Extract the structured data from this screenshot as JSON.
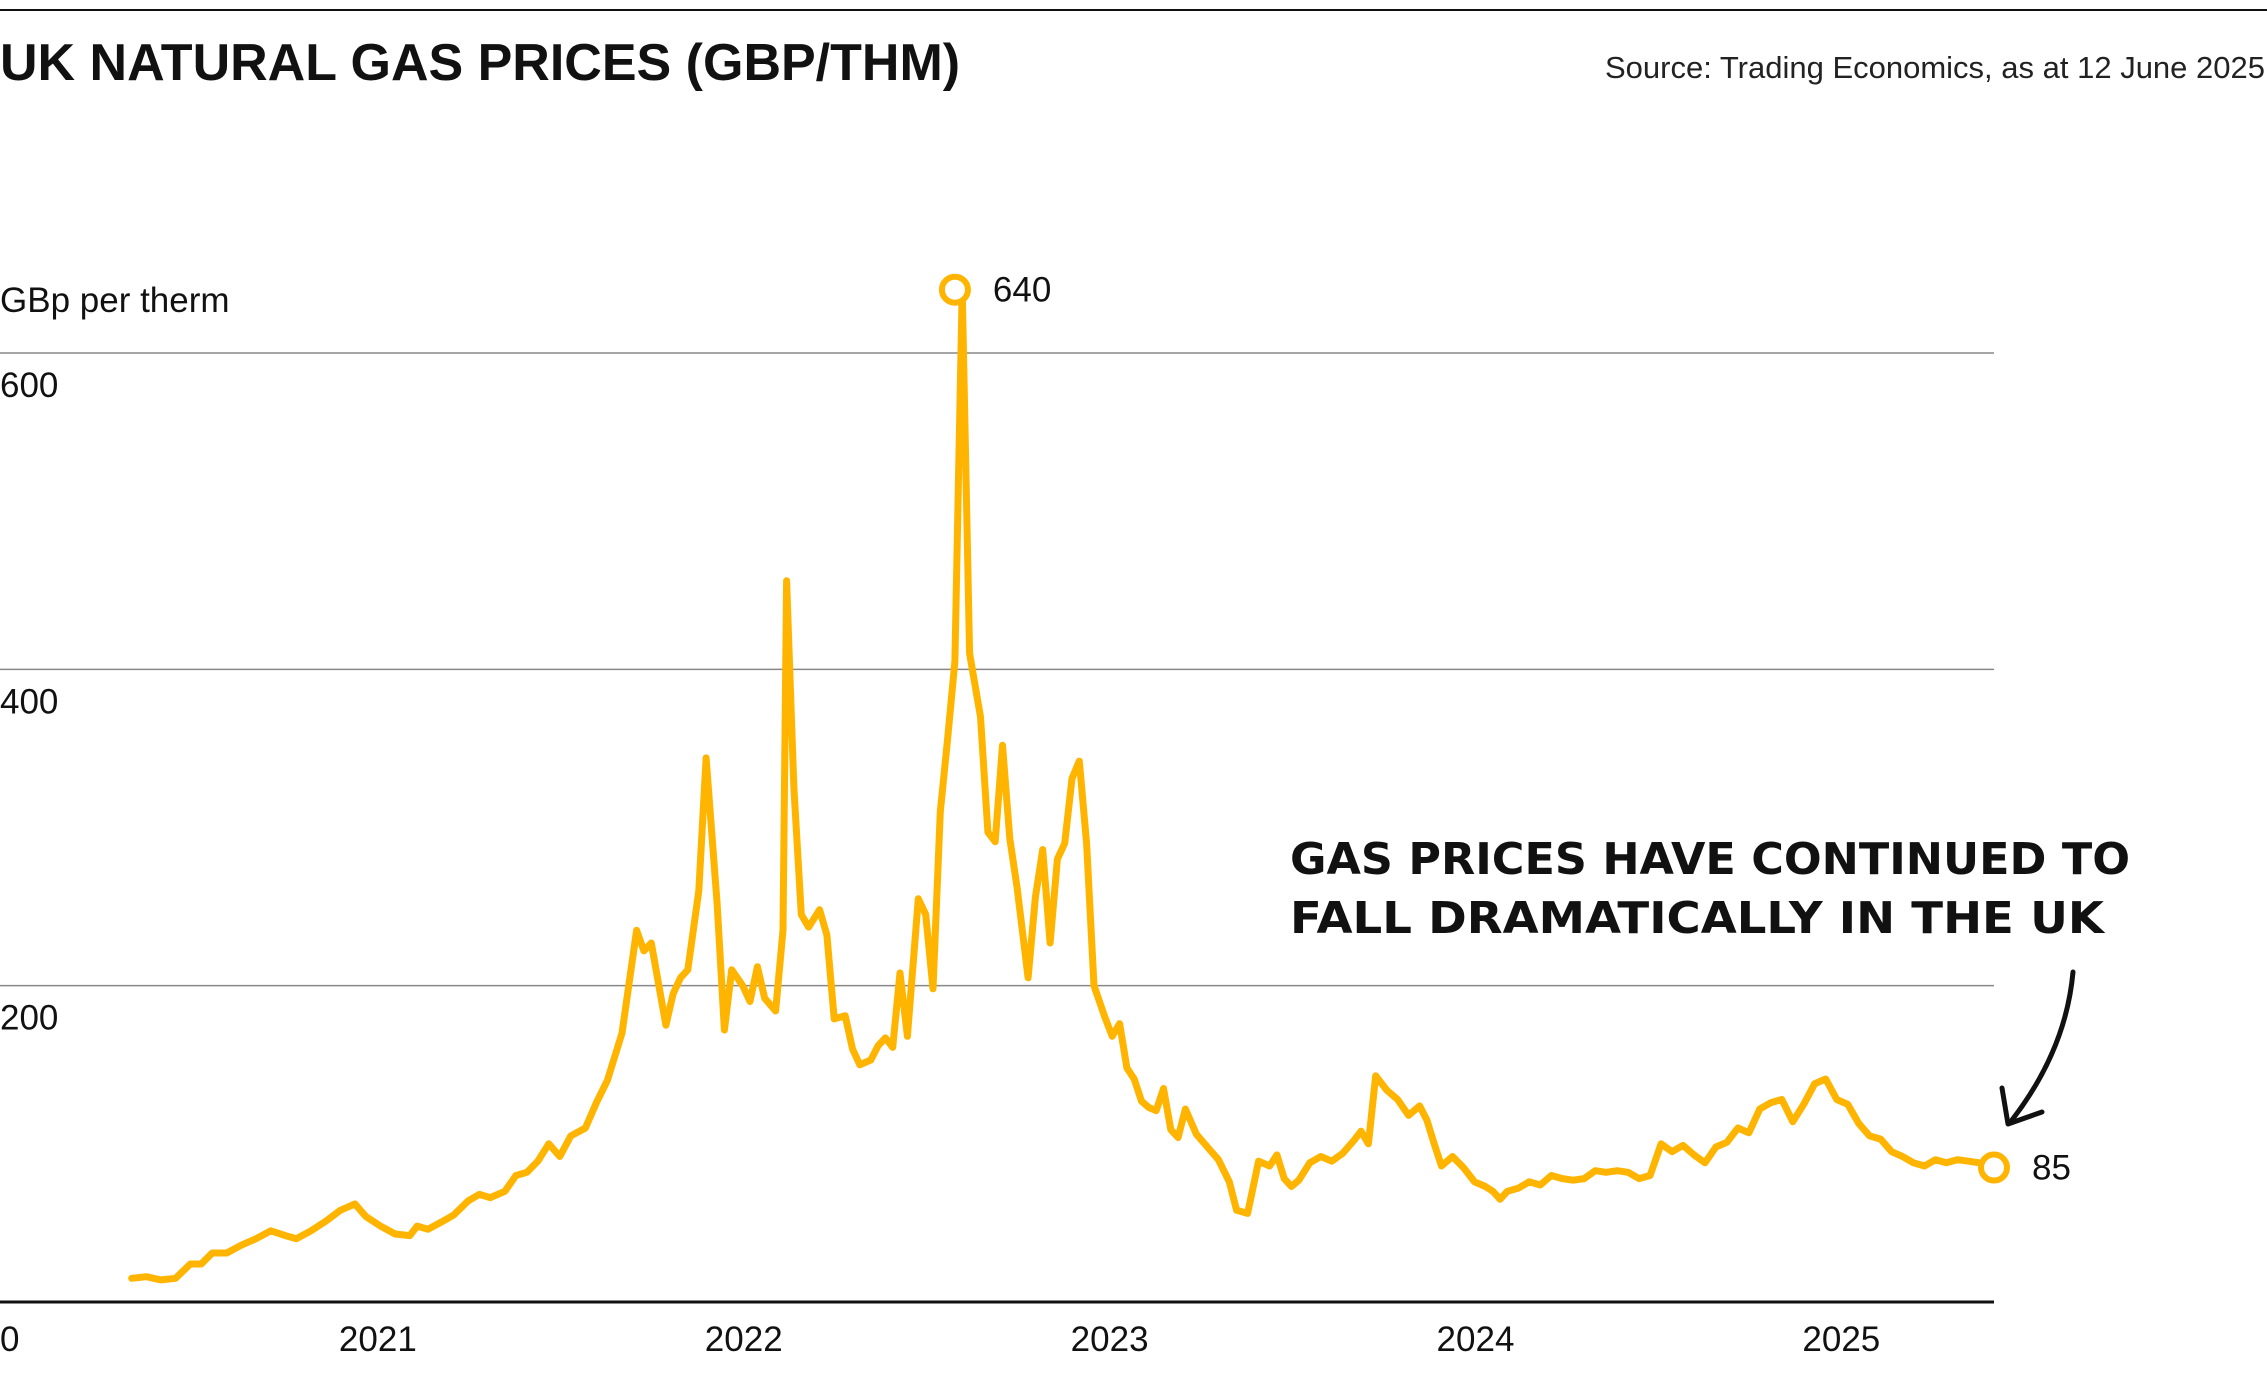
{
  "header": {
    "title": "UK NATURAL GAS PRICES (GBP/THM)",
    "source": "Source: Trading Economics, as at 12 June 2025"
  },
  "annotation": {
    "line1": "GAS PRICES HAVE CONTINUED TO",
    "line2": "FALL DRAMATICALLY IN THE UK"
  },
  "colors": {
    "line": "#FFB400",
    "text": "#111111",
    "grid": "#888888",
    "axis": "#111111"
  },
  "chart_data": {
    "type": "line",
    "title": "UK NATURAL GAS PRICES (GBP/THM)",
    "ylabel": "GBp per therm",
    "xlabel": "",
    "ylim": [
      0,
      660
    ],
    "yticks": [
      0,
      200,
      400,
      600
    ],
    "xticks": [
      "2021",
      "2022",
      "2023",
      "2024",
      "2025"
    ],
    "grid": true,
    "callouts": [
      {
        "label": "640",
        "x": 2022.61,
        "y": 640
      },
      {
        "label": "85",
        "x": 2025.45,
        "y": 85
      }
    ],
    "series": [
      {
        "values": [
          [
            2020.36,
            15
          ],
          [
            2020.4,
            16
          ],
          [
            2020.44,
            14
          ],
          [
            2020.48,
            15
          ],
          [
            2020.52,
            24
          ],
          [
            2020.55,
            24
          ],
          [
            2020.58,
            31
          ],
          [
            2020.62,
            31
          ],
          [
            2020.66,
            36
          ],
          [
            2020.7,
            40
          ],
          [
            2020.74,
            45
          ],
          [
            2020.78,
            42
          ],
          [
            2020.81,
            40
          ],
          [
            2020.85,
            45
          ],
          [
            2020.89,
            51
          ],
          [
            2020.93,
            58
          ],
          [
            2020.97,
            62
          ],
          [
            2021.0,
            54
          ],
          [
            2021.04,
            48
          ],
          [
            2021.08,
            43
          ],
          [
            2021.12,
            42
          ],
          [
            2021.14,
            48
          ],
          [
            2021.17,
            46
          ],
          [
            2021.21,
            51
          ],
          [
            2021.24,
            55
          ],
          [
            2021.28,
            64
          ],
          [
            2021.31,
            68
          ],
          [
            2021.34,
            66
          ],
          [
            2021.38,
            70
          ],
          [
            2021.41,
            80
          ],
          [
            2021.44,
            82
          ],
          [
            2021.47,
            89
          ],
          [
            2021.5,
            100
          ],
          [
            2021.53,
            92
          ],
          [
            2021.56,
            105
          ],
          [
            2021.6,
            110
          ],
          [
            2021.63,
            126
          ],
          [
            2021.66,
            140
          ],
          [
            2021.7,
            170
          ],
          [
            2021.74,
            235
          ],
          [
            2021.76,
            222
          ],
          [
            2021.78,
            227
          ],
          [
            2021.8,
            201
          ],
          [
            2021.82,
            175
          ],
          [
            2021.84,
            195
          ],
          [
            2021.86,
            205
          ],
          [
            2021.88,
            210
          ],
          [
            2021.91,
            260
          ],
          [
            2021.93,
            344
          ],
          [
            2021.96,
            252
          ],
          [
            2021.98,
            172
          ],
          [
            2022.0,
            210
          ],
          [
            2022.03,
            200
          ],
          [
            2022.05,
            190
          ],
          [
            2022.07,
            212
          ],
          [
            2022.09,
            192
          ],
          [
            2022.12,
            184
          ],
          [
            2022.14,
            235
          ],
          [
            2022.15,
            456
          ],
          [
            2022.17,
            325
          ],
          [
            2022.19,
            245
          ],
          [
            2022.21,
            237
          ],
          [
            2022.24,
            248
          ],
          [
            2022.26,
            232
          ],
          [
            2022.28,
            179
          ],
          [
            2022.31,
            181
          ],
          [
            2022.33,
            160
          ],
          [
            2022.35,
            150
          ],
          [
            2022.38,
            153
          ],
          [
            2022.4,
            162
          ],
          [
            2022.42,
            167
          ],
          [
            2022.44,
            161
          ],
          [
            2022.46,
            208
          ],
          [
            2022.48,
            168
          ],
          [
            2022.51,
            255
          ],
          [
            2022.53,
            245
          ],
          [
            2022.55,
            198
          ],
          [
            2022.57,
            310
          ],
          [
            2022.59,
            356
          ],
          [
            2022.61,
            405
          ],
          [
            2022.63,
            640
          ],
          [
            2022.65,
            410
          ],
          [
            2022.68,
            370
          ],
          [
            2022.7,
            297
          ],
          [
            2022.72,
            291
          ],
          [
            2022.74,
            352
          ],
          [
            2022.76,
            293
          ],
          [
            2022.78,
            262
          ],
          [
            2022.81,
            205
          ],
          [
            2022.83,
            256
          ],
          [
            2022.85,
            286
          ],
          [
            2022.87,
            227
          ],
          [
            2022.89,
            280
          ],
          [
            2022.91,
            290
          ],
          [
            2022.93,
            331
          ],
          [
            2022.95,
            342
          ],
          [
            2022.97,
            290
          ],
          [
            2022.99,
            200
          ],
          [
            2023.02,
            180
          ],
          [
            2023.04,
            168
          ],
          [
            2023.06,
            176
          ],
          [
            2023.08,
            148
          ],
          [
            2023.1,
            141
          ],
          [
            2023.12,
            127
          ],
          [
            2023.14,
            123
          ],
          [
            2023.16,
            121
          ],
          [
            2023.18,
            135
          ],
          [
            2023.2,
            109
          ],
          [
            2023.22,
            104
          ],
          [
            2023.24,
            122
          ],
          [
            2023.27,
            106
          ],
          [
            2023.3,
            98
          ],
          [
            2023.33,
            90
          ],
          [
            2023.36,
            76
          ],
          [
            2023.38,
            58
          ],
          [
            2023.41,
            56
          ],
          [
            2023.44,
            89
          ],
          [
            2023.47,
            86
          ],
          [
            2023.49,
            93
          ],
          [
            2023.51,
            78
          ],
          [
            2023.53,
            73
          ],
          [
            2023.55,
            77
          ],
          [
            2023.58,
            88
          ],
          [
            2023.61,
            92
          ],
          [
            2023.64,
            89
          ],
          [
            2023.67,
            94
          ],
          [
            2023.7,
            102
          ],
          [
            2023.72,
            108
          ],
          [
            2023.74,
            100
          ],
          [
            2023.76,
            143
          ],
          [
            2023.79,
            134
          ],
          [
            2023.82,
            128
          ],
          [
            2023.85,
            118
          ],
          [
            2023.88,
            124
          ],
          [
            2023.9,
            115
          ],
          [
            2023.92,
            100
          ],
          [
            2023.94,
            86
          ],
          [
            2023.97,
            92
          ],
          [
            2024.0,
            85
          ],
          [
            2024.03,
            76
          ],
          [
            2024.06,
            73
          ],
          [
            2024.08,
            70
          ],
          [
            2024.1,
            65
          ],
          [
            2024.12,
            70
          ],
          [
            2024.15,
            72
          ],
          [
            2024.18,
            76
          ],
          [
            2024.21,
            74
          ],
          [
            2024.24,
            80
          ],
          [
            2024.27,
            78
          ],
          [
            2024.3,
            77
          ],
          [
            2024.33,
            78
          ],
          [
            2024.36,
            83
          ],
          [
            2024.39,
            82
          ],
          [
            2024.42,
            83
          ],
          [
            2024.45,
            82
          ],
          [
            2024.48,
            78
          ],
          [
            2024.51,
            80
          ],
          [
            2024.54,
            100
          ],
          [
            2024.57,
            95
          ],
          [
            2024.6,
            99
          ],
          [
            2024.63,
            93
          ],
          [
            2024.66,
            88
          ],
          [
            2024.69,
            98
          ],
          [
            2024.72,
            101
          ],
          [
            2024.75,
            110
          ],
          [
            2024.78,
            107
          ],
          [
            2024.81,
            122
          ],
          [
            2024.84,
            126
          ],
          [
            2024.87,
            128
          ],
          [
            2024.9,
            114
          ],
          [
            2024.93,
            125
          ],
          [
            2024.96,
            138
          ],
          [
            2024.99,
            141
          ],
          [
            2025.02,
            128
          ],
          [
            2025.05,
            125
          ],
          [
            2025.08,
            113
          ],
          [
            2025.11,
            105
          ],
          [
            2025.14,
            103
          ],
          [
            2025.17,
            95
          ],
          [
            2025.2,
            92
          ],
          [
            2025.23,
            88
          ],
          [
            2025.26,
            86
          ],
          [
            2025.29,
            90
          ],
          [
            2025.32,
            88
          ],
          [
            2025.35,
            90
          ],
          [
            2025.38,
            89
          ],
          [
            2025.41,
            88
          ],
          [
            2025.45,
            85
          ]
        ]
      }
    ]
  }
}
